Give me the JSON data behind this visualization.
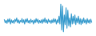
{
  "line_color": "#3399cc",
  "background_color": "#ffffff",
  "linewidth": 0.8,
  "values": [
    0.2,
    -0.3,
    0.1,
    -0.4,
    0.3,
    -0.2,
    0.4,
    -0.5,
    0.2,
    -0.3,
    0.1,
    -0.4,
    0.3,
    -0.1,
    0.5,
    -0.3,
    0.2,
    -0.4,
    0.1,
    -0.2,
    0.4,
    -0.3,
    0.2,
    -0.5,
    0.3,
    -0.2,
    0.4,
    -0.3,
    0.1,
    -0.4,
    0.3,
    -0.2,
    0.1,
    -0.5,
    0.2,
    -0.3,
    0.4,
    -0.2,
    0.3,
    -0.4,
    0.1,
    -0.3,
    0.2,
    -0.4,
    0.3,
    -0.2,
    0.5,
    -0.3,
    0.2,
    -0.4,
    0.3,
    -0.2,
    0.1,
    -0.4,
    0.2,
    -0.3,
    0.4,
    -0.2,
    0.3,
    -0.5,
    0.2,
    -0.3,
    0.8,
    -0.5,
    2.8,
    -1.5,
    2.5,
    -1.8,
    1.0,
    -0.6,
    2.2,
    -1.2,
    1.8,
    -0.8,
    0.5,
    -1.0,
    1.2,
    -0.5,
    0.8,
    -0.4,
    1.0,
    -0.6,
    0.5,
    -0.3,
    0.8,
    -0.5,
    0.4,
    -0.6,
    0.3,
    -0.4,
    0.5,
    -0.3,
    0.2,
    -0.5,
    0.4,
    -0.3,
    0.2,
    -0.4,
    0.3,
    -0.2
  ],
  "ylim": [
    -2.5,
    3.5
  ]
}
